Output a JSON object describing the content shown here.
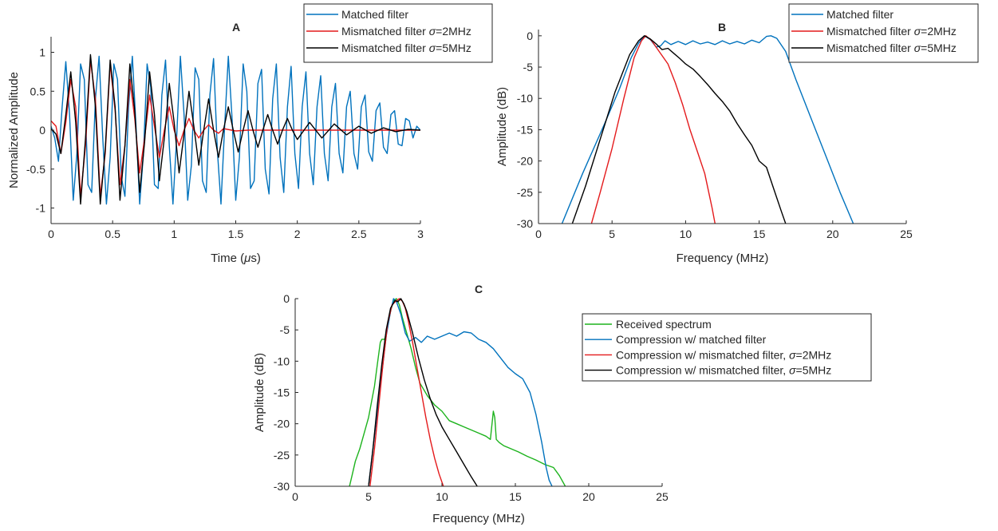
{
  "chart_data": [
    {
      "panel": "A",
      "type": "line",
      "title": "A",
      "xlabel": "Time (μs)",
      "ylabel": "Normalized Amplitude",
      "xlim": [
        0,
        3
      ],
      "ylim": [
        -1.2,
        1.2
      ],
      "xticks": [
        0,
        0.5,
        1,
        1.5,
        2,
        2.5,
        3
      ],
      "xtick_labels": [
        "0",
        "0.5",
        "1",
        "1.5",
        "2",
        "2.5",
        "3"
      ],
      "yticks": [
        1,
        0.5,
        0,
        -0.5,
        -1
      ],
      "ytick_labels": [
        "1",
        "0.5",
        "0",
        "-0.5",
        "-1"
      ],
      "grid": false,
      "legend_position": "top-right",
      "series": [
        {
          "name": "Matched filter",
          "color": "#0072BD",
          "x": [
            0,
            0.03,
            0.06,
            0.09,
            0.12,
            0.15,
            0.18,
            0.21,
            0.24,
            0.27,
            0.3,
            0.33,
            0.36,
            0.39,
            0.42,
            0.45,
            0.48,
            0.51,
            0.54,
            0.57,
            0.6,
            0.63,
            0.66,
            0.69,
            0.72,
            0.75,
            0.78,
            0.81,
            0.84,
            0.87,
            0.9,
            0.93,
            0.96,
            0.99,
            1.02,
            1.05,
            1.08,
            1.11,
            1.14,
            1.17,
            1.2,
            1.23,
            1.26,
            1.29,
            1.32,
            1.35,
            1.38,
            1.41,
            1.44,
            1.47,
            1.5,
            1.53,
            1.56,
            1.59,
            1.62,
            1.65,
            1.68,
            1.71,
            1.74,
            1.77,
            1.8,
            1.83,
            1.86,
            1.89,
            1.92,
            1.95,
            1.98,
            2.01,
            2.04,
            2.07,
            2.1,
            2.13,
            2.16,
            2.19,
            2.22,
            2.25,
            2.28,
            2.31,
            2.34,
            2.37,
            2.4,
            2.43,
            2.46,
            2.49,
            2.52,
            2.55,
            2.58,
            2.61,
            2.64,
            2.67,
            2.7,
            2.73,
            2.76,
            2.79,
            2.82,
            2.85,
            2.88,
            2.91,
            2.94,
            2.97,
            3.0
          ],
          "y": [
            0.05,
            -0.1,
            -0.4,
            0.3,
            0.88,
            0.2,
            -0.9,
            -0.3,
            0.85,
            0.65,
            -0.7,
            -0.8,
            0.4,
            0.95,
            -0.1,
            -0.95,
            -0.35,
            0.85,
            0.65,
            -0.6,
            -0.85,
            0.3,
            0.95,
            0.05,
            -0.95,
            -0.3,
            0.85,
            0.55,
            -0.7,
            -0.75,
            0.45,
            0.9,
            -0.2,
            -0.95,
            -0.1,
            0.95,
            0.2,
            -0.9,
            -0.45,
            0.8,
            0.65,
            -0.65,
            -0.8,
            0.45,
            0.92,
            -0.25,
            -0.95,
            0.05,
            0.95,
            0.15,
            -0.9,
            -0.35,
            0.85,
            0.5,
            -0.75,
            -0.65,
            0.6,
            0.78,
            -0.5,
            -0.82,
            0.4,
            0.85,
            -0.35,
            -0.8,
            0.3,
            0.82,
            -0.3,
            -0.75,
            0.3,
            0.75,
            -0.3,
            -0.7,
            0.3,
            0.7,
            -0.3,
            -0.65,
            0.3,
            0.6,
            -0.3,
            -0.55,
            0.3,
            0.5,
            -0.3,
            -0.5,
            0.3,
            0.45,
            -0.28,
            -0.4,
            0.25,
            0.35,
            -0.22,
            -0.3,
            0.2,
            0.25,
            -0.18,
            -0.2,
            0.15,
            0.12,
            -0.1,
            0.05,
            0.0
          ]
        },
        {
          "name": "Mismatched filter σ=2MHz",
          "color": "#E41A1C",
          "x": [
            0,
            0.04,
            0.08,
            0.12,
            0.16,
            0.2,
            0.24,
            0.28,
            0.32,
            0.36,
            0.4,
            0.44,
            0.48,
            0.52,
            0.56,
            0.6,
            0.64,
            0.68,
            0.72,
            0.76,
            0.8,
            0.84,
            0.88,
            0.92,
            0.96,
            1.0,
            1.04,
            1.08,
            1.12,
            1.16,
            1.2,
            1.24,
            1.28,
            1.32,
            1.36,
            1.4,
            1.5,
            1.6,
            1.8,
            2.0,
            2.5,
            3.0
          ],
          "y": [
            0.12,
            0.05,
            -0.3,
            0.1,
            0.65,
            0.3,
            -0.85,
            -0.2,
            0.9,
            0.4,
            -0.85,
            -0.3,
            0.85,
            0.25,
            -0.7,
            -0.2,
            0.65,
            0.15,
            -0.55,
            -0.1,
            0.45,
            0.05,
            -0.35,
            0.0,
            0.3,
            0.0,
            -0.2,
            0.0,
            0.15,
            0.0,
            -0.1,
            0.0,
            0.07,
            0.0,
            -0.04,
            0.02,
            -0.01,
            0.0,
            0.0,
            0.0,
            0.0,
            0.0
          ]
        },
        {
          "name": "Mismatched filter σ=5MHz",
          "color": "#000000",
          "x": [
            0,
            0.04,
            0.08,
            0.12,
            0.16,
            0.2,
            0.24,
            0.28,
            0.32,
            0.36,
            0.4,
            0.44,
            0.48,
            0.52,
            0.56,
            0.6,
            0.64,
            0.68,
            0.72,
            0.76,
            0.8,
            0.84,
            0.88,
            0.92,
            0.96,
            1.0,
            1.04,
            1.08,
            1.12,
            1.16,
            1.2,
            1.24,
            1.28,
            1.32,
            1.36,
            1.4,
            1.44,
            1.48,
            1.52,
            1.56,
            1.6,
            1.64,
            1.68,
            1.72,
            1.76,
            1.8,
            1.84,
            1.88,
            1.92,
            1.96,
            2.0,
            2.1,
            2.2,
            2.3,
            2.4,
            2.5,
            2.6,
            2.7,
            2.8,
            2.9,
            3.0
          ],
          "y": [
            0.02,
            -0.05,
            -0.3,
            0.2,
            0.75,
            0.1,
            -0.95,
            -0.1,
            0.97,
            0.3,
            -0.95,
            -0.25,
            0.9,
            0.3,
            -0.9,
            -0.2,
            0.85,
            0.25,
            -0.8,
            -0.15,
            0.75,
            0.2,
            -0.65,
            -0.1,
            0.6,
            0.1,
            -0.55,
            -0.05,
            0.5,
            0.05,
            -0.45,
            0.0,
            0.4,
            0.0,
            -0.35,
            0.0,
            0.3,
            0.0,
            -0.28,
            0.0,
            0.25,
            0.0,
            -0.22,
            0.0,
            0.2,
            0.0,
            -0.18,
            0.0,
            0.15,
            0.0,
            -0.12,
            0.1,
            -0.1,
            0.08,
            -0.06,
            0.05,
            -0.04,
            0.03,
            -0.02,
            0.01,
            0.0
          ]
        }
      ]
    },
    {
      "panel": "B",
      "type": "line",
      "title": "B",
      "xlabel": "Frequency (MHz)",
      "ylabel": "Amplitude (dB)",
      "xlim": [
        0,
        25
      ],
      "ylim": [
        -30,
        1
      ],
      "xticks": [
        0,
        5,
        10,
        15,
        20,
        25
      ],
      "xtick_labels": [
        "0",
        "5",
        "10",
        "15",
        "20",
        "25"
      ],
      "yticks": [
        0,
        -5,
        -10,
        -15,
        -20,
        -25,
        -30
      ],
      "ytick_labels": [
        "0",
        "-5",
        "-10",
        "-15",
        "-20",
        "-25",
        "-30"
      ],
      "grid": false,
      "legend_position": "top-right",
      "series": [
        {
          "name": "Matched filter",
          "color": "#0072BD",
          "x": [
            1.6,
            3,
            4.5,
            5.5,
            6.3,
            6.8,
            7.2,
            7.6,
            8.0,
            8.3,
            8.6,
            9,
            9.5,
            10,
            10.5,
            11,
            11.5,
            12,
            12.5,
            13,
            13.5,
            14,
            14.5,
            15,
            15.5,
            15.8,
            16.2,
            16.8,
            17.5,
            18.5,
            19.5,
            20.5,
            21.4
          ],
          "y": [
            -30,
            -22,
            -14,
            -8.5,
            -3.5,
            -1.2,
            0,
            -0.6,
            -1.8,
            -1.6,
            -0.8,
            -1.4,
            -0.9,
            -1.4,
            -0.8,
            -1.3,
            -1.0,
            -1.4,
            -0.8,
            -1.3,
            -0.9,
            -1.3,
            -0.7,
            -1.1,
            -0.1,
            0,
            -0.4,
            -2.5,
            -7,
            -13,
            -19,
            -25,
            -30
          ]
        },
        {
          "name": "Mismatched filter σ=2MHz",
          "color": "#E41A1C",
          "x": [
            3.6,
            4.2,
            5,
            5.8,
            6.5,
            7.0,
            7.3,
            7.7,
            8.2,
            8.8,
            9.3,
            9.8,
            10.3,
            10.8,
            11.3,
            11.8,
            12.0
          ],
          "y": [
            -30,
            -25,
            -18,
            -10,
            -3.5,
            -0.8,
            0,
            -0.8,
            -2.5,
            -4.5,
            -7.5,
            -11,
            -15,
            -18.5,
            -22,
            -27.5,
            -30
          ]
        },
        {
          "name": "Mismatched filter σ=5MHz",
          "color": "#000000",
          "x": [
            2.3,
            3.2,
            4.2,
            5.2,
            6.2,
            6.8,
            7.2,
            7.6,
            8.0,
            8.4,
            8.8,
            9.2,
            9.6,
            10,
            10.5,
            11,
            11.5,
            12,
            12.5,
            13,
            13.5,
            14,
            14.5,
            15,
            15.5,
            16,
            16.5,
            16.8
          ],
          "y": [
            -30,
            -24,
            -16.5,
            -9,
            -3,
            -0.8,
            0,
            -0.5,
            -1.3,
            -2.2,
            -2.0,
            -2.8,
            -3.6,
            -4.5,
            -5.3,
            -6.5,
            -7.8,
            -9.2,
            -10.5,
            -12,
            -14,
            -15.8,
            -17.5,
            -20,
            -21,
            -24.5,
            -28,
            -30
          ]
        }
      ]
    },
    {
      "panel": "C",
      "type": "line",
      "title": "C",
      "xlabel": "Frequency (MHz)",
      "ylabel": "Amplitude (dB)",
      "xlim": [
        0,
        25
      ],
      "ylim": [
        -30,
        0
      ],
      "xticks": [
        0,
        5,
        10,
        15,
        20,
        25
      ],
      "xtick_labels": [
        "0",
        "5",
        "10",
        "15",
        "20",
        "25"
      ],
      "yticks": [
        0,
        -5,
        -10,
        -15,
        -20,
        -25,
        -30
      ],
      "ytick_labels": [
        "0",
        "-5",
        "-10",
        "-15",
        "-20",
        "-25",
        "-30"
      ],
      "grid": false,
      "legend_position": "right",
      "series": [
        {
          "name": "Received spectrum",
          "color": "#1DB31D",
          "x": [
            3.7,
            3.9,
            4.1,
            4.4,
            4.7,
            5.0,
            5.2,
            5.4,
            5.6,
            5.8,
            5.9,
            6.1,
            6.3,
            6.5,
            6.7,
            6.9,
            7.1,
            7.3,
            7.6,
            7.9,
            8.2,
            8.5,
            9,
            9.5,
            10,
            10.5,
            11,
            11.5,
            12,
            12.5,
            13,
            13.3,
            13.5,
            13.6,
            13.7,
            13.9,
            14.2,
            14.7,
            15.2,
            15.8,
            16.4,
            17,
            17.6,
            18.0,
            18.4
          ],
          "y": [
            -30,
            -28,
            -26,
            -24,
            -21.5,
            -19,
            -16.5,
            -14,
            -10.5,
            -7,
            -6.5,
            -6.5,
            -4.5,
            -2,
            -0.3,
            0,
            -1,
            -3,
            -5.5,
            -8,
            -11,
            -13.5,
            -15.5,
            -17,
            -18,
            -19.5,
            -20,
            -20.5,
            -21,
            -21.5,
            -22,
            -22.5,
            -18,
            -19,
            -22.5,
            -23,
            -23.5,
            -24,
            -24.5,
            -25.2,
            -25.8,
            -26.5,
            -27,
            -28.3,
            -30
          ]
        },
        {
          "name": "Compression w/ matched filter",
          "color": "#0072BD",
          "x": [
            5.0,
            5.3,
            5.6,
            5.9,
            6.2,
            6.5,
            6.7,
            6.9,
            7.2,
            7.5,
            7.8,
            8.2,
            8.6,
            9,
            9.5,
            10,
            10.5,
            11,
            11.5,
            12,
            12.5,
            13,
            13.5,
            14,
            14.5,
            15,
            15.5,
            16,
            16.4,
            16.8,
            17.1,
            17.3,
            17.5
          ],
          "y": [
            -30,
            -24,
            -18,
            -12,
            -6,
            -2,
            0,
            -0.5,
            -2.5,
            -5.5,
            -6.8,
            -6.2,
            -7,
            -6,
            -6.5,
            -6,
            -5.5,
            -6,
            -5.3,
            -5.5,
            -6.5,
            -7,
            -8,
            -9.5,
            -11,
            -12,
            -12.8,
            -15,
            -18.5,
            -23,
            -27,
            -29,
            -30
          ]
        },
        {
          "name": "Compression w/ mismatched filter, σ=2MHz",
          "color": "#E41A1C",
          "x": [
            5.1,
            5.4,
            5.7,
            6.0,
            6.3,
            6.6,
            6.9,
            7.1,
            7.3,
            7.5,
            7.7,
            8.0,
            8.3,
            8.6,
            8.9,
            9.2,
            9.5,
            9.8,
            10.1
          ],
          "y": [
            -30,
            -24,
            -17,
            -10,
            -4,
            -1,
            -0.3,
            0,
            -0.4,
            -1.5,
            -3.5,
            -7,
            -11,
            -15,
            -19,
            -22.5,
            -25.5,
            -28,
            -30
          ]
        },
        {
          "name": "Compression w/ mismatched filter, σ=5MHz",
          "color": "#000000",
          "x": [
            5.0,
            5.3,
            5.6,
            5.9,
            6.2,
            6.5,
            6.8,
            7.0,
            7.2,
            7.4,
            7.6,
            8.0,
            8.4,
            8.8,
            9.2,
            9.6,
            10,
            10.5,
            11,
            11.5,
            12,
            12.4
          ],
          "y": [
            -30,
            -24,
            -17,
            -10.5,
            -5,
            -1.5,
            -0.3,
            -0.5,
            0,
            -0.8,
            -2,
            -5.5,
            -9.5,
            -13,
            -16,
            -18.5,
            -20.5,
            -22.5,
            -24.5,
            -26.5,
            -28.5,
            -30
          ]
        }
      ]
    }
  ]
}
